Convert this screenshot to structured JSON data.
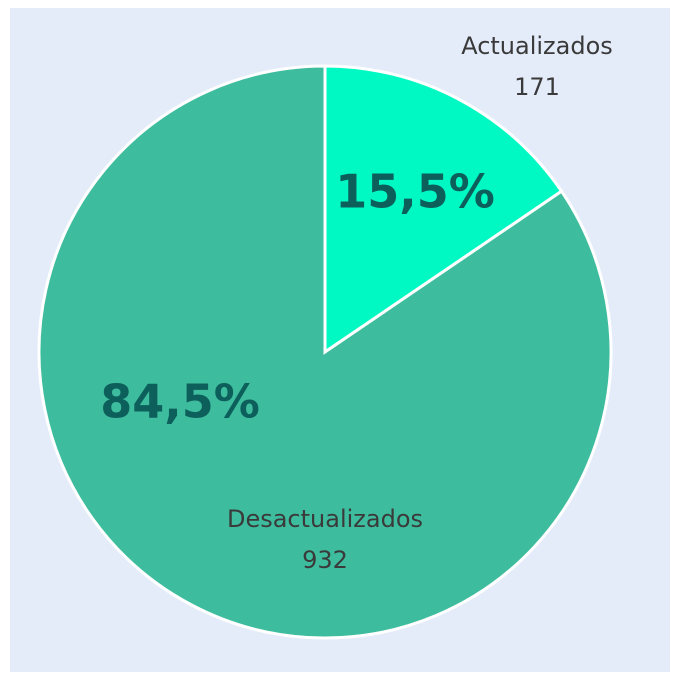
{
  "chart_data": {
    "type": "pie",
    "categories": [
      "Actualizados",
      "Desactualizados"
    ],
    "counts": [
      171,
      932
    ],
    "values": [
      15.5,
      84.5
    ],
    "value_labels": [
      "15,5%",
      "84,5%"
    ],
    "colors": [
      "#00f9c3",
      "#3dbd9e"
    ]
  }
}
